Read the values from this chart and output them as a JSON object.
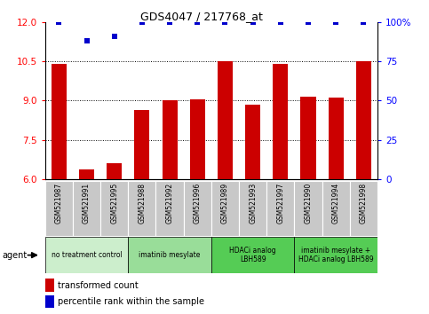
{
  "title": "GDS4047 / 217768_at",
  "samples": [
    "GSM521987",
    "GSM521991",
    "GSM521995",
    "GSM521988",
    "GSM521992",
    "GSM521996",
    "GSM521989",
    "GSM521993",
    "GSM521997",
    "GSM521990",
    "GSM521994",
    "GSM521998"
  ],
  "bar_values": [
    10.4,
    6.35,
    6.6,
    8.65,
    9.0,
    9.05,
    10.5,
    8.85,
    10.4,
    9.15,
    9.1,
    10.5
  ],
  "dot_values": [
    100,
    88,
    91,
    100,
    100,
    100,
    100,
    100,
    100,
    100,
    100,
    100
  ],
  "bar_color": "#cc0000",
  "dot_color": "#0000cc",
  "ylim_left": [
    6,
    12
  ],
  "ylim_right": [
    0,
    100
  ],
  "yticks_left": [
    6,
    7.5,
    9,
    10.5,
    12
  ],
  "yticks_right": [
    0,
    25,
    50,
    75,
    100
  ],
  "grid_values": [
    7.5,
    9.0,
    10.5
  ],
  "agents": [
    {
      "label": "no treatment control",
      "start": 0,
      "end": 3,
      "color": "#cceecc"
    },
    {
      "label": "imatinib mesylate",
      "start": 3,
      "end": 6,
      "color": "#99dd99"
    },
    {
      "label": "HDACi analog\nLBH589",
      "start": 6,
      "end": 9,
      "color": "#55cc55"
    },
    {
      "label": "imatinib mesylate +\nHDACi analog LBH589",
      "start": 9,
      "end": 12,
      "color": "#55cc55"
    }
  ],
  "legend_items": [
    {
      "label": "transformed count",
      "color": "#cc0000"
    },
    {
      "label": "percentile rank within the sample",
      "color": "#0000cc"
    }
  ],
  "tick_label_area_color": "#c8c8c8",
  "fig_width": 4.83,
  "fig_height": 3.54,
  "dpi": 100
}
